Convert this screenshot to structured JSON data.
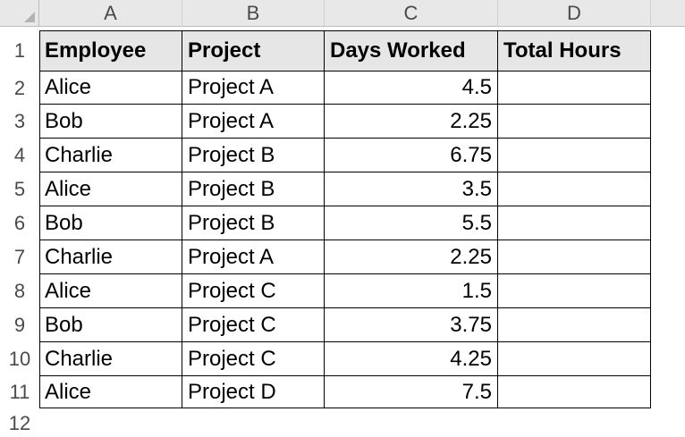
{
  "sheet": {
    "columns": [
      "A",
      "B",
      "C",
      "D"
    ],
    "row_numbers": [
      "1",
      "2",
      "3",
      "4",
      "5",
      "6",
      "7",
      "8",
      "9",
      "10",
      "11",
      "12"
    ],
    "headers": [
      "Employee",
      "Project",
      "Days Worked",
      "Total Hours"
    ],
    "rows": [
      [
        "Alice",
        "Project A",
        "4.5",
        ""
      ],
      [
        "Bob",
        "Project A",
        "2.25",
        ""
      ],
      [
        "Charlie",
        "Project B",
        "6.75",
        ""
      ],
      [
        "Alice",
        "Project B",
        "3.5",
        ""
      ],
      [
        "Bob",
        "Project B",
        "5.5",
        ""
      ],
      [
        "Charlie",
        "Project A",
        "2.25",
        ""
      ],
      [
        "Alice",
        "Project C",
        "1.5",
        ""
      ],
      [
        "Bob",
        "Project C",
        "3.75",
        ""
      ],
      [
        "Charlie",
        "Project C",
        "4.25",
        ""
      ],
      [
        "Alice",
        "Project D",
        "7.5",
        ""
      ]
    ]
  }
}
